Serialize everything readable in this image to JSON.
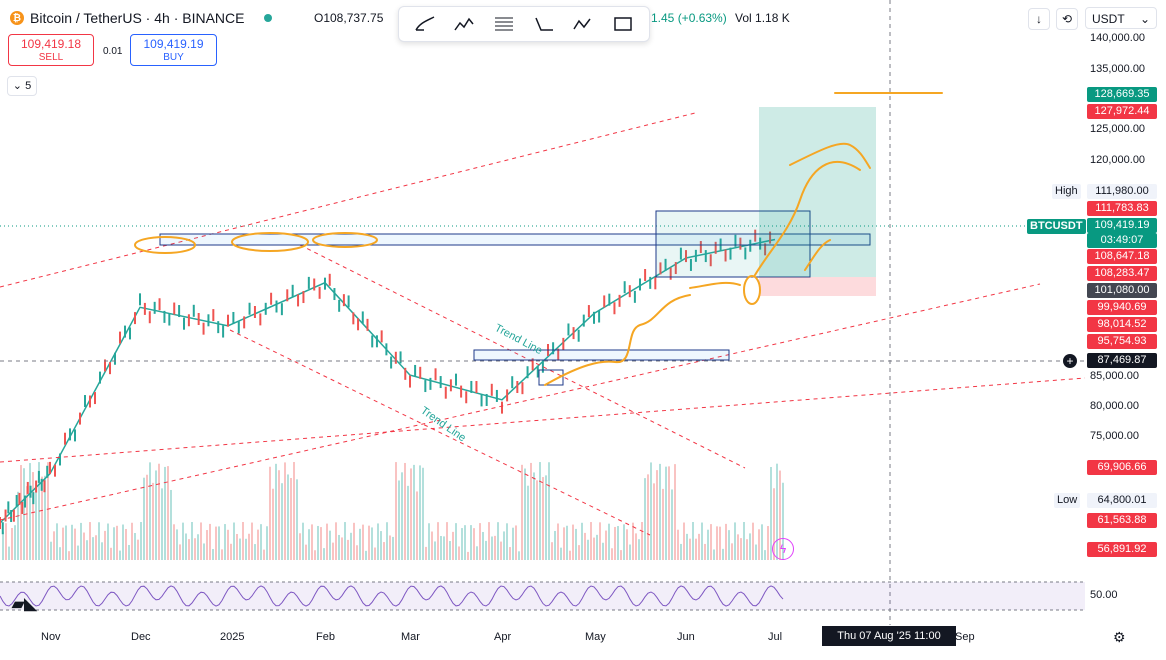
{
  "header": {
    "coin_glyph": "₿",
    "title": "Bitcoin / TetherUS · 4h · BINANCE",
    "open_text": "O108,737.75",
    "change_text": "1.45 (+0.63%)",
    "vol_text": "Vol 1.18 K"
  },
  "trade": {
    "sell_price": "109,419.18",
    "sell_label": "SELL",
    "spread": "0.01",
    "buy_price": "109,419.19",
    "buy_label": "BUY"
  },
  "indicators_toggle": "5",
  "toolbar_right": {
    "currency": "USDT"
  },
  "price_axis": [
    "140,000.00",
    "135,000.00",
    "125,000.00",
    "120,000.00",
    "85,000.00",
    "80,000.00",
    "75,000.00"
  ],
  "price_tags": [
    {
      "text": "128,669.35",
      "color": "#089981"
    },
    {
      "text": "127,972.44",
      "color": "#f23645"
    },
    {
      "text": "111,980.00",
      "color": "#f0f3fa"
    },
    {
      "text": "111,783.83",
      "color": "#f23645"
    },
    {
      "text": "109,419.19",
      "color": "#089981"
    },
    {
      "text": "03:49:07",
      "color": "#089981"
    },
    {
      "text": "108,647.18",
      "color": "#f23645"
    },
    {
      "text": "108,283.47",
      "color": "#f23645"
    },
    {
      "text": "101,080.00",
      "color": "#434651"
    },
    {
      "text": "99,940.69",
      "color": "#f23645"
    },
    {
      "text": "98,014.52",
      "color": "#f23645"
    },
    {
      "text": "95,754.93",
      "color": "#f23645"
    },
    {
      "text": "87,469.87",
      "color": "#131722"
    },
    {
      "text": "69,906.66",
      "color": "#f23645"
    },
    {
      "text": "64,800.01",
      "color": "#f0f3fa"
    },
    {
      "text": "61,563.88",
      "color": "#f23645"
    },
    {
      "text": "56,891.92",
      "color": "#f23645"
    }
  ],
  "side_labels": {
    "high": "High",
    "low": "Low",
    "symbol": "BTCUSDT"
  },
  "time_axis": [
    "Nov",
    "Dec",
    "2025",
    "Feb",
    "Mar",
    "Apr",
    "May",
    "Jun",
    "Jul",
    "Sep"
  ],
  "crosshair_time": "Thu 07 Aug '25   11:00",
  "rsi_level": "50.00",
  "annotations": {
    "trend_line_1": "Trend Line",
    "trend_line_2": "Trend Line"
  },
  "colors": {
    "up": "#26a69a",
    "down": "#ef5350",
    "drawing": "#f5a623",
    "trend": "#f23645"
  },
  "chart_data": {
    "type": "line",
    "title": "Bitcoin / TetherUS · 4h · BINANCE",
    "xlabel": "",
    "ylabel": "",
    "x": [
      "Nov",
      "Dec",
      "2025",
      "Feb",
      "Mar",
      "Apr",
      "May",
      "Jun",
      "Jul"
    ],
    "series": [
      {
        "values": [
          70000,
          97000,
          94000,
          101000,
          86000,
          82000,
          96000,
          105000,
          108000
        ]
      }
    ],
    "ylim": [
      56000,
      142000
    ],
    "grid": false,
    "legend": "none"
  }
}
